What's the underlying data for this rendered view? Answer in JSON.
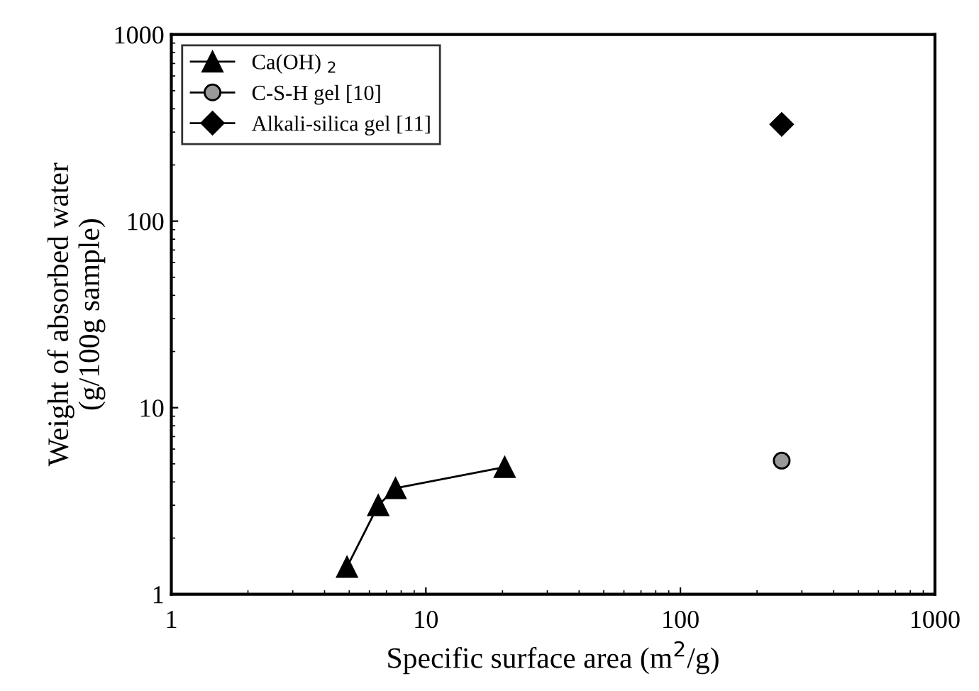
{
  "chart_data": {
    "type": "line",
    "xlabel": "Specific surface area (m$^{2}$/g)",
    "ylabel": "Weight of absorbed water\n(g/100g sample)",
    "log": "xy",
    "xlim": [
      1,
      1000
    ],
    "ylim": [
      1,
      1000
    ],
    "xticks": [
      1,
      10,
      100,
      1000
    ],
    "yticks": [
      1,
      10,
      100,
      1000
    ],
    "grid": false,
    "legend": "top left",
    "series": [
      {
        "name": "Ca(OH) $_{2}$",
        "color": "#000000",
        "marker": "triangle",
        "x": [
          4.9,
          6.5,
          7.6,
          20.4
        ],
        "values": [
          1.4,
          3.0,
          3.7,
          4.8
        ]
      },
      {
        "name": "C-S-H gel [10]",
        "color": "#999999",
        "marker": "circle",
        "x": [
          250
        ],
        "values": [
          5.2
        ]
      },
      {
        "name": "Alkali-silica gel [11]",
        "color": "#000000",
        "marker": "diamond",
        "x": [
          250
        ],
        "values": [
          330
        ]
      }
    ]
  }
}
